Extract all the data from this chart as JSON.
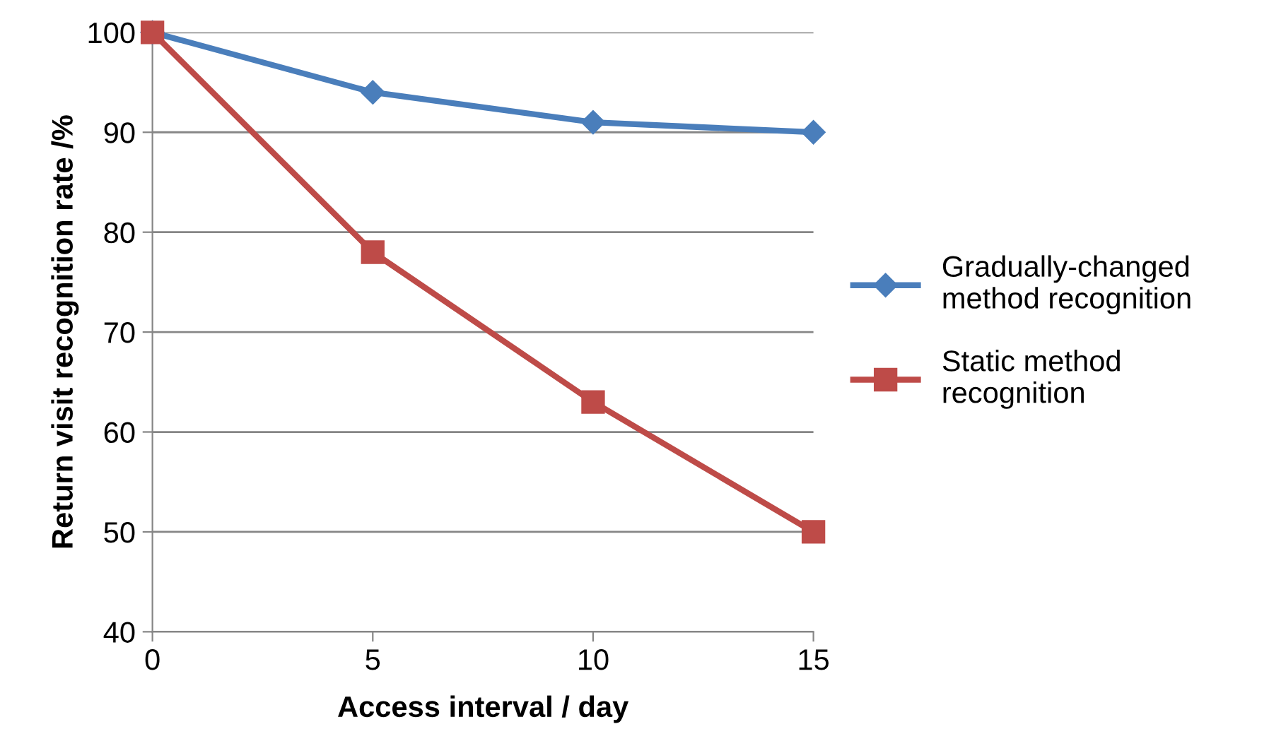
{
  "chart_data": {
    "type": "line",
    "xlabel": "Access interval / day",
    "ylabel": "Return visit recognition rate /%",
    "x": [
      0,
      5,
      10,
      15
    ],
    "series": [
      {
        "name": "Gradually-changed method recognition",
        "color": "#4a7ebb",
        "marker": "diamond",
        "values": [
          100,
          94,
          91,
          90
        ]
      },
      {
        "name": "Static method recognition",
        "color": "#be4b48",
        "marker": "square",
        "values": [
          100,
          78,
          63,
          50
        ]
      }
    ],
    "xlim": [
      0,
      15
    ],
    "xticks": [
      0,
      5,
      10,
      15
    ],
    "ylim": [
      40,
      100
    ],
    "yticks": [
      40,
      50,
      60,
      70,
      80,
      90,
      100
    ],
    "grid": "y",
    "legend": "right",
    "line_style": "solid"
  }
}
